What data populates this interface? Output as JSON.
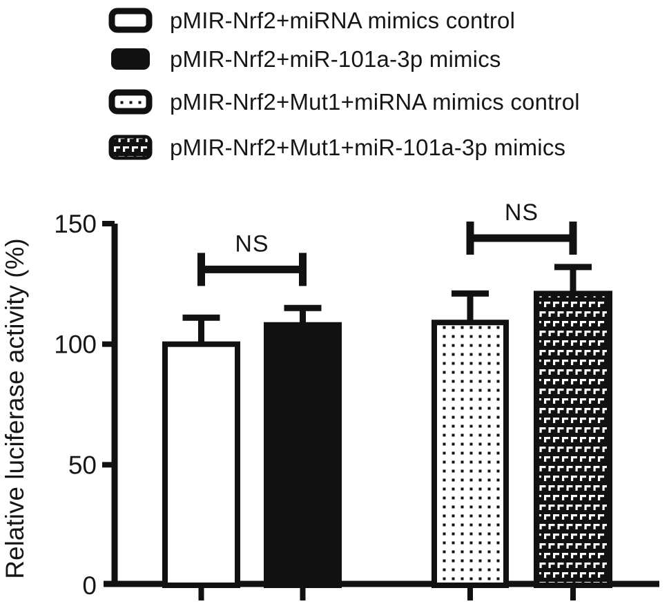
{
  "figure": {
    "background": "#ffffff",
    "ink_color": "#111111"
  },
  "legend": {
    "items": [
      {
        "label": "pMIR-Nrf2+miRNA mimics control",
        "swatch": "open"
      },
      {
        "label": "pMIR-Nrf2+miR-101a-3p mimics",
        "swatch": "solid"
      },
      {
        "label": "pMIR-Nrf2+Mut1+miRNA mimics control",
        "swatch": "dotted"
      },
      {
        "label": "pMIR-Nrf2+Mut1+miR-101a-3p mimics",
        "swatch": "brick"
      }
    ]
  },
  "chart_data": {
    "type": "bar",
    "title": "",
    "xlabel": "",
    "ylabel": "Relative luciferase activity (%)",
    "ylim": [
      0,
      150
    ],
    "yticks": [
      0,
      50,
      100,
      150
    ],
    "grid": false,
    "legend_position": "top-left",
    "categories": [
      "pMIR-Nrf2+miRNA mimics control",
      "pMIR-Nrf2+miR-101a-3p mimics",
      "pMIR-Nrf2+Mut1+miRNA mimics control",
      "pMIR-Nrf2+Mut1+miR-101a-3p mimics"
    ],
    "values": [
      100,
      108,
      109,
      121
    ],
    "errors_up": [
      11,
      7,
      12,
      11
    ],
    "bar_patterns": [
      "open",
      "solid",
      "dotted",
      "brick"
    ],
    "annotations": [
      {
        "text": "NS",
        "between_bars": [
          0,
          1
        ],
        "y_value": 131
      },
      {
        "text": "NS",
        "between_bars": [
          2,
          3
        ],
        "y_value": 144
      }
    ]
  }
}
